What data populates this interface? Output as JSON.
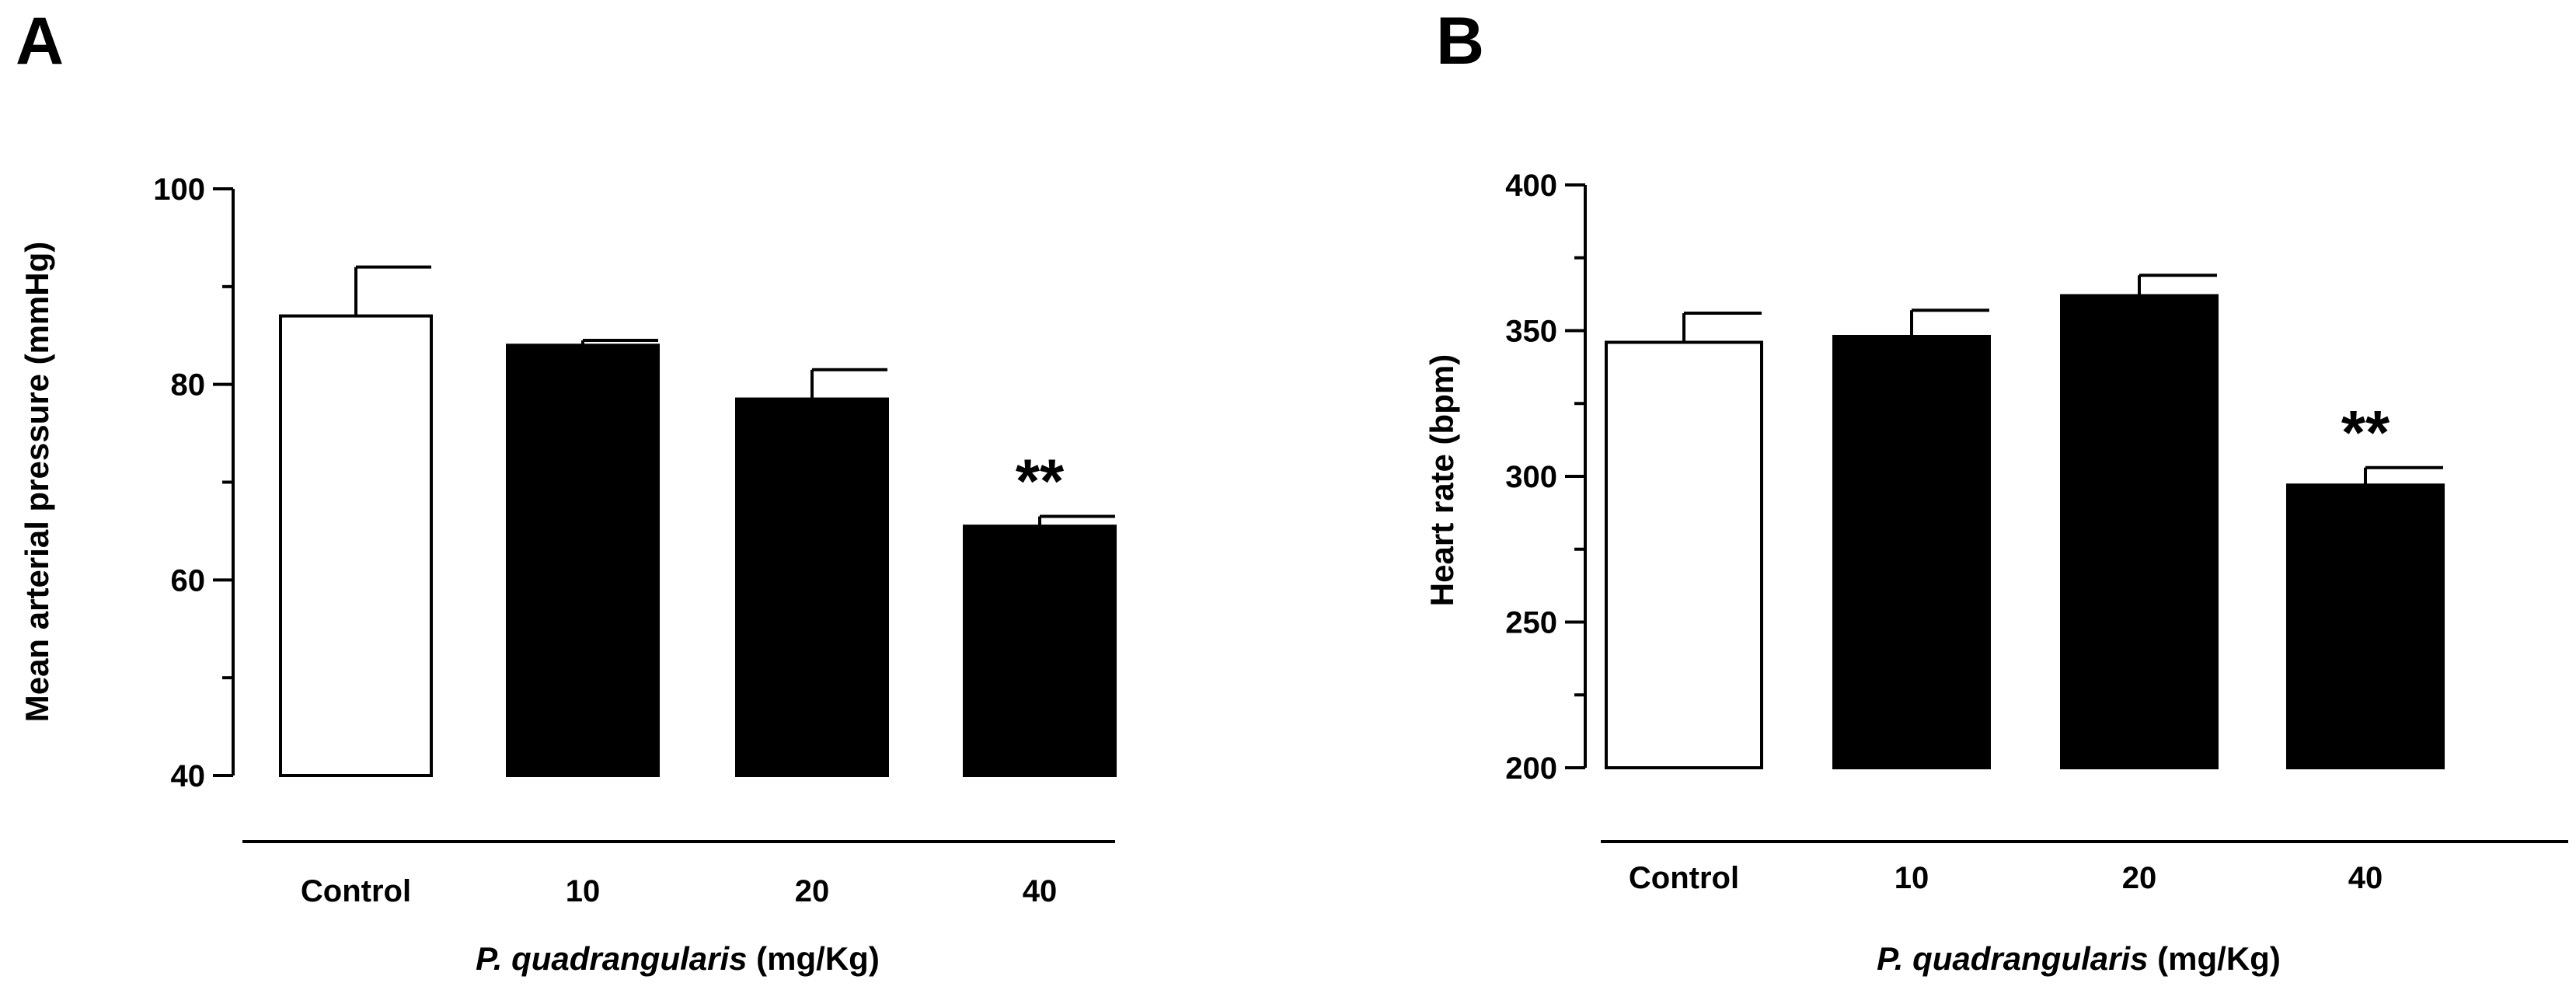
{
  "figure": {
    "panels": [
      {
        "letter": "A"
      },
      {
        "letter": "B"
      }
    ]
  },
  "chart_data": [
    {
      "type": "bar",
      "panel": "A",
      "title": "",
      "categories": [
        "Control",
        "10",
        "20",
        "40"
      ],
      "values": [
        87,
        84,
        78.5,
        65.5
      ],
      "errors": [
        5,
        0.5,
        3,
        1
      ],
      "fills": [
        "#ffffff",
        "#000000",
        "#000000",
        "#000000"
      ],
      "significance": [
        "",
        "",
        "",
        "**"
      ],
      "ylabel": "Mean arterial pressure (mmHg)",
      "xlabel_italic": "P. quadrangularis",
      "xlabel_unit": " (mg/Kg)",
      "ylim": [
        40,
        100
      ],
      "yticks": [
        40,
        60,
        80,
        100
      ],
      "ytick_labels": [
        "40",
        "60",
        "80",
        "100"
      ],
      "grid": false
    },
    {
      "type": "bar",
      "panel": "B",
      "title": "",
      "categories": [
        "Control",
        "10",
        "20",
        "40"
      ],
      "values": [
        346,
        348,
        362,
        297
      ],
      "errors": [
        10,
        9,
        7,
        6
      ],
      "fills": [
        "#ffffff",
        "#000000",
        "#000000",
        "#000000"
      ],
      "significance": [
        "",
        "",
        "",
        "**"
      ],
      "ylabel": "Heart rate (bpm)",
      "xlabel_italic": "P. quadrangularis",
      "xlabel_unit": " (mg/Kg)",
      "ylim": [
        200,
        400
      ],
      "yticks": [
        200,
        250,
        300,
        350,
        400
      ],
      "ytick_labels": [
        "200",
        "250",
        "300",
        "350",
        "400"
      ],
      "grid": false
    }
  ]
}
